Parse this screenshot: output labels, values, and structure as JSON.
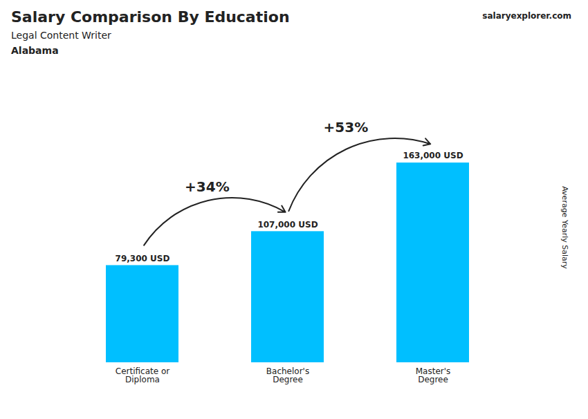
{
  "chart_data": {
    "type": "bar",
    "title": "Salary Comparison By Education",
    "subtitle": [
      "Legal Content Writer",
      "Alabama"
    ],
    "ylabel": "Average Yearly Salary",
    "categories": [
      "Certificate or\nDiploma",
      "Bachelor's\nDegree",
      "Master's\nDegree"
    ],
    "values": [
      79300,
      107000,
      163000
    ],
    "value_labels": [
      "79,300 USD",
      "107,000 USD",
      "163,000 USD"
    ],
    "data_labels": true,
    "color": "#00BFFF",
    "ylim": [
      0,
      220050
    ],
    "tick_labels": "x",
    "grid": false,
    "annotations": [
      {
        "text": "salaryexplorer.com"
      },
      {
        "text": "+34%",
        "from": "Certificate or\nDiploma",
        "to": "Bachelor's\nDegree"
      },
      {
        "text": "+53%",
        "from": "Bachelor's\nDegree",
        "to": "Master's\nDegree"
      }
    ]
  }
}
